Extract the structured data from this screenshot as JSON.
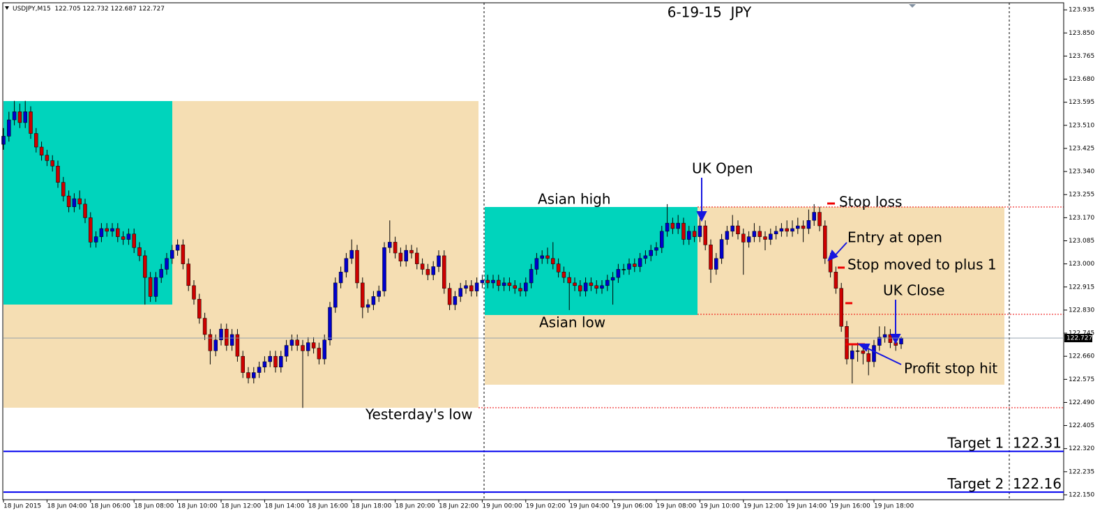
{
  "chart_data": {
    "type": "candlestick",
    "symbol": "USDJPY,M15",
    "title": "6-19-15  JPY",
    "up_color": "#0000cc",
    "down_color": "#cc0000",
    "candles": [
      [
        123.44,
        123.5,
        123.42,
        123.47
      ],
      [
        123.47,
        123.56,
        123.45,
        123.53
      ],
      [
        123.53,
        123.6,
        123.51,
        123.56
      ],
      [
        123.56,
        123.59,
        123.5,
        123.52
      ],
      [
        123.52,
        123.6,
        123.5,
        123.56
      ],
      [
        123.56,
        123.58,
        123.46,
        123.48
      ],
      [
        123.48,
        123.5,
        123.41,
        123.43
      ],
      [
        123.43,
        123.45,
        123.38,
        123.4
      ],
      [
        123.4,
        123.42,
        123.36,
        123.38
      ],
      [
        123.38,
        123.4,
        123.34,
        123.36
      ],
      [
        123.36,
        123.38,
        123.28,
        123.3
      ],
      [
        123.3,
        123.32,
        123.23,
        123.25
      ],
      [
        123.25,
        123.27,
        123.19,
        123.21
      ],
      [
        123.21,
        123.26,
        123.19,
        123.24
      ],
      [
        123.24,
        123.27,
        123.2,
        123.22
      ],
      [
        123.22,
        123.24,
        123.15,
        123.17
      ],
      [
        123.17,
        123.19,
        123.06,
        123.08
      ],
      [
        123.08,
        123.12,
        123.06,
        123.1
      ],
      [
        123.1,
        123.15,
        123.08,
        123.13
      ],
      [
        123.13,
        123.15,
        123.1,
        123.12
      ],
      [
        123.12,
        123.15,
        123.1,
        123.13
      ],
      [
        123.13,
        123.15,
        123.08,
        123.1
      ],
      [
        123.1,
        123.12,
        123.07,
        123.09
      ],
      [
        123.09,
        123.13,
        123.07,
        123.11
      ],
      [
        123.11,
        123.13,
        123.04,
        123.06
      ],
      [
        123.06,
        123.08,
        123.01,
        123.03
      ],
      [
        123.03,
        123.05,
        122.85,
        122.95
      ],
      [
        122.95,
        122.97,
        122.86,
        122.88
      ],
      [
        122.88,
        122.97,
        122.86,
        122.95
      ],
      [
        122.95,
        123.0,
        122.93,
        122.98
      ],
      [
        122.98,
        123.04,
        122.96,
        123.02
      ],
      [
        123.02,
        123.07,
        123.0,
        123.05
      ],
      [
        123.05,
        123.09,
        123.03,
        123.07
      ],
      [
        123.07,
        123.09,
        122.98,
        123.0
      ],
      [
        123.0,
        123.02,
        122.9,
        122.92
      ],
      [
        122.92,
        122.94,
        122.85,
        122.87
      ],
      [
        122.87,
        122.89,
        122.78,
        122.8
      ],
      [
        122.8,
        122.82,
        122.72,
        122.74
      ],
      [
        122.74,
        122.76,
        122.63,
        122.68
      ],
      [
        122.68,
        122.74,
        122.66,
        122.72
      ],
      [
        122.72,
        122.78,
        122.7,
        122.76
      ],
      [
        122.76,
        122.78,
        122.68,
        122.7
      ],
      [
        122.7,
        122.76,
        122.68,
        122.74
      ],
      [
        122.74,
        122.76,
        122.64,
        122.66
      ],
      [
        122.66,
        122.68,
        122.58,
        122.6
      ],
      [
        122.6,
        122.62,
        122.56,
        122.58
      ],
      [
        122.58,
        122.62,
        122.56,
        122.6
      ],
      [
        122.6,
        122.64,
        122.58,
        122.62
      ],
      [
        122.62,
        122.66,
        122.6,
        122.64
      ],
      [
        122.64,
        122.68,
        122.62,
        122.66
      ],
      [
        122.66,
        122.68,
        122.6,
        122.62
      ],
      [
        122.62,
        122.68,
        122.6,
        122.66
      ],
      [
        122.66,
        122.72,
        122.64,
        122.7
      ],
      [
        122.7,
        122.74,
        122.68,
        122.72
      ],
      [
        122.72,
        122.74,
        122.68,
        122.7
      ],
      [
        122.7,
        122.72,
        122.47,
        122.68
      ],
      [
        122.68,
        122.73,
        122.66,
        122.71
      ],
      [
        122.71,
        122.73,
        122.67,
        122.69
      ],
      [
        122.69,
        122.71,
        122.63,
        122.65
      ],
      [
        122.65,
        122.74,
        122.63,
        122.72
      ],
      [
        122.72,
        122.86,
        122.7,
        122.84
      ],
      [
        122.84,
        122.95,
        122.82,
        122.93
      ],
      [
        122.93,
        122.99,
        122.91,
        122.97
      ],
      [
        122.97,
        123.04,
        122.95,
        123.02
      ],
      [
        123.02,
        123.09,
        123.0,
        123.05
      ],
      [
        123.05,
        123.07,
        122.91,
        122.93
      ],
      [
        122.93,
        122.95,
        122.8,
        122.84
      ],
      [
        122.84,
        122.87,
        122.82,
        122.85
      ],
      [
        122.85,
        122.9,
        122.83,
        122.88
      ],
      [
        122.88,
        122.92,
        122.86,
        122.9
      ],
      [
        122.9,
        123.08,
        122.88,
        123.06
      ],
      [
        123.06,
        123.16,
        123.04,
        123.08
      ],
      [
        123.08,
        123.1,
        123.02,
        123.04
      ],
      [
        123.04,
        123.06,
        122.99,
        123.01
      ],
      [
        123.01,
        123.07,
        122.99,
        123.05
      ],
      [
        123.05,
        123.07,
        123.02,
        123.04
      ],
      [
        123.04,
        123.06,
        122.98,
        123.0
      ],
      [
        123.0,
        123.02,
        122.96,
        122.98
      ],
      [
        122.98,
        123.0,
        122.94,
        122.96
      ],
      [
        122.96,
        123.01,
        122.94,
        122.99
      ],
      [
        122.99,
        123.05,
        122.97,
        123.03
      ],
      [
        123.03,
        123.05,
        122.89,
        122.91
      ],
      [
        122.91,
        122.93,
        122.83,
        122.85
      ],
      [
        122.85,
        122.9,
        122.83,
        122.88
      ],
      [
        122.88,
        122.93,
        122.86,
        122.91
      ],
      [
        122.91,
        122.94,
        122.89,
        122.92
      ],
      [
        122.92,
        122.94,
        122.88,
        122.9
      ],
      [
        122.9,
        122.95,
        122.88,
        122.93
      ],
      [
        122.93,
        122.96,
        122.91,
        122.94
      ],
      [
        122.94,
        122.96,
        122.91,
        122.93
      ],
      [
        122.93,
        122.96,
        122.91,
        122.94
      ],
      [
        122.94,
        122.96,
        122.9,
        122.92
      ],
      [
        122.92,
        122.95,
        122.9,
        122.93
      ],
      [
        122.93,
        122.95,
        122.9,
        122.92
      ],
      [
        122.92,
        122.94,
        122.89,
        122.91
      ],
      [
        122.91,
        122.93,
        122.88,
        122.9
      ],
      [
        122.9,
        122.95,
        122.88,
        122.93
      ],
      [
        122.93,
        123.0,
        122.91,
        122.98
      ],
      [
        122.98,
        123.04,
        122.96,
        123.02
      ],
      [
        123.02,
        123.05,
        123.0,
        123.03
      ],
      [
        123.03,
        123.06,
        123.0,
        123.02
      ],
      [
        123.02,
        123.08,
        122.98,
        123.0
      ],
      [
        123.0,
        123.02,
        122.95,
        122.97
      ],
      [
        122.97,
        122.99,
        122.93,
        122.95
      ],
      [
        122.95,
        122.97,
        122.83,
        122.93
      ],
      [
        122.93,
        122.95,
        122.9,
        122.92
      ],
      [
        122.92,
        122.94,
        122.88,
        122.9
      ],
      [
        122.9,
        122.95,
        122.88,
        122.93
      ],
      [
        122.93,
        122.95,
        122.9,
        122.92
      ],
      [
        122.92,
        122.94,
        122.89,
        122.91
      ],
      [
        122.91,
        122.94,
        122.89,
        122.92
      ],
      [
        122.92,
        122.96,
        122.9,
        122.94
      ],
      [
        122.94,
        122.97,
        122.85,
        122.95
      ],
      [
        122.95,
        123.0,
        122.93,
        122.98
      ],
      [
        122.98,
        123.0,
        122.96,
        122.98
      ],
      [
        122.98,
        123.02,
        122.96,
        123.0
      ],
      [
        123.0,
        123.02,
        122.97,
        122.99
      ],
      [
        122.99,
        123.04,
        122.97,
        123.02
      ],
      [
        123.02,
        123.05,
        123.0,
        123.03
      ],
      [
        123.03,
        123.07,
        123.01,
        123.05
      ],
      [
        123.05,
        123.08,
        123.03,
        123.06
      ],
      [
        123.06,
        123.14,
        123.04,
        123.12
      ],
      [
        123.12,
        123.22,
        123.1,
        123.15
      ],
      [
        123.15,
        123.17,
        123.11,
        123.13
      ],
      [
        123.13,
        123.18,
        123.11,
        123.15
      ],
      [
        123.15,
        123.17,
        123.07,
        123.09
      ],
      [
        123.09,
        123.14,
        123.07,
        123.12
      ],
      [
        123.12,
        123.14,
        123.08,
        123.1
      ],
      [
        123.1,
        123.17,
        123.08,
        123.14
      ],
      [
        123.14,
        123.16,
        123.05,
        123.07
      ],
      [
        123.07,
        123.09,
        122.93,
        122.98
      ],
      [
        122.98,
        123.04,
        122.96,
        123.02
      ],
      [
        123.02,
        123.11,
        123.0,
        123.09
      ],
      [
        123.09,
        123.14,
        123.07,
        123.12
      ],
      [
        123.12,
        123.18,
        123.1,
        123.14
      ],
      [
        123.14,
        123.16,
        123.09,
        123.11
      ],
      [
        123.11,
        123.13,
        122.96,
        123.08
      ],
      [
        123.08,
        123.12,
        123.06,
        123.1
      ],
      [
        123.1,
        123.15,
        123.08,
        123.12
      ],
      [
        123.12,
        123.14,
        123.08,
        123.1
      ],
      [
        123.1,
        123.12,
        123.05,
        123.09
      ],
      [
        123.09,
        123.13,
        123.07,
        123.11
      ],
      [
        123.11,
        123.14,
        123.09,
        123.12
      ],
      [
        123.12,
        123.15,
        123.1,
        123.13
      ],
      [
        123.13,
        123.16,
        123.1,
        123.12
      ],
      [
        123.12,
        123.16,
        123.1,
        123.13
      ],
      [
        123.13,
        123.17,
        123.11,
        123.14
      ],
      [
        123.14,
        123.16,
        123.08,
        123.13
      ],
      [
        123.13,
        123.2,
        123.11,
        123.16
      ],
      [
        123.16,
        123.22,
        123.14,
        123.19
      ],
      [
        123.19,
        123.21,
        123.12,
        123.14
      ],
      [
        123.14,
        123.16,
        123.0,
        123.02
      ],
      [
        123.02,
        123.04,
        122.95,
        122.97
      ],
      [
        122.97,
        122.99,
        122.89,
        122.91
      ],
      [
        122.91,
        122.93,
        122.75,
        122.77
      ],
      [
        122.77,
        122.79,
        122.63,
        122.65
      ],
      [
        122.65,
        122.7,
        122.56,
        122.68
      ],
      [
        122.68,
        122.71,
        122.64,
        122.68
      ],
      [
        122.68,
        122.7,
        122.63,
        122.67
      ],
      [
        122.67,
        122.69,
        122.59,
        122.64
      ],
      [
        122.64,
        122.72,
        122.62,
        122.7
      ],
      [
        122.7,
        122.77,
        122.68,
        122.73
      ],
      [
        122.73,
        122.77,
        122.71,
        122.74
      ],
      [
        122.74,
        122.76,
        122.69,
        122.71
      ],
      [
        122.71,
        122.73,
        122.68,
        122.7
      ],
      [
        122.705,
        122.732,
        122.687,
        122.727
      ]
    ],
    "ylim": [
      122.132,
      123.961
    ],
    "yticks": [
      123.935,
      {
        "value": 123.85,
        "label": "123.850"
      },
      123.765,
      {
        "value": 123.68,
        "label": "123.680"
      },
      123.595,
      {
        "value": 123.51,
        "label": "123.510"
      },
      123.425,
      {
        "value": 123.34,
        "label": "123.340"
      },
      123.255,
      {
        "value": 123.17,
        "label": "123.170"
      },
      123.085,
      {
        "value": 123,
        "label": "123.000"
      },
      122.915,
      {
        "value": 122.83,
        "label": "122.830"
      },
      122.745,
      {
        "value": 122.66,
        "label": "122.660"
      },
      122.575,
      {
        "value": 122.49,
        "label": "122.490"
      },
      122.405,
      {
        "value": 122.32,
        "label": "122.320"
      },
      122.235,
      {
        "value": 122.15,
        "label": "122.150"
      }
    ],
    "xlim": [
      0,
      195
    ],
    "xticks": [
      {
        "value": 0,
        "label": "18 Jun 2015"
      },
      {
        "value": 8,
        "label": "18 Jun 04:00"
      },
      {
        "value": 16,
        "label": "18 Jun 06:00"
      },
      {
        "value": 24,
        "label": "18 Jun 08:00"
      },
      {
        "value": 32,
        "label": "18 Jun 10:00"
      },
      {
        "value": 40,
        "label": "18 Jun 12:00"
      },
      {
        "value": 48,
        "label": "18 Jun 14:00"
      },
      {
        "value": 56,
        "label": "18 Jun 16:00"
      },
      {
        "value": 64,
        "label": "18 Jun 18:00"
      },
      {
        "value": 72,
        "label": "18 Jun 20:00"
      },
      {
        "value": 80,
        "label": "18 Jun 22:00"
      },
      {
        "value": 88,
        "label": "19 Jun 00:00"
      },
      {
        "value": 96,
        "label": "19 Jun 02:00"
      },
      {
        "value": 104,
        "label": "19 Jun 04:00"
      },
      {
        "value": 112,
        "label": "19 Jun 06:00"
      },
      {
        "value": 120,
        "label": "19 Jun 08:00"
      },
      {
        "value": 128,
        "label": "19 Jun 10:00"
      },
      {
        "value": 136,
        "label": "19 Jun 12:00"
      },
      {
        "value": 144,
        "label": "19 Jun 14:00"
      },
      {
        "value": 152,
        "label": "19 Jun 16:00"
      },
      {
        "value": 160,
        "label": "19 Jun 18:00"
      }
    ],
    "target_lines": [
      {
        "label": "Target 1",
        "value": 122.31,
        "color": "#0000ee"
      },
      {
        "label": "Target 2",
        "value": 122.16,
        "color": "#0000ee"
      }
    ],
    "annotations": [
      "UK Open",
      "Asian high",
      "Asian low",
      "Stop loss",
      "Entry at open",
      "Stop moved to plus 1",
      "UK Close",
      "Profit stop hit",
      "Yesterday's low"
    ],
    "grid": false
  }
}
